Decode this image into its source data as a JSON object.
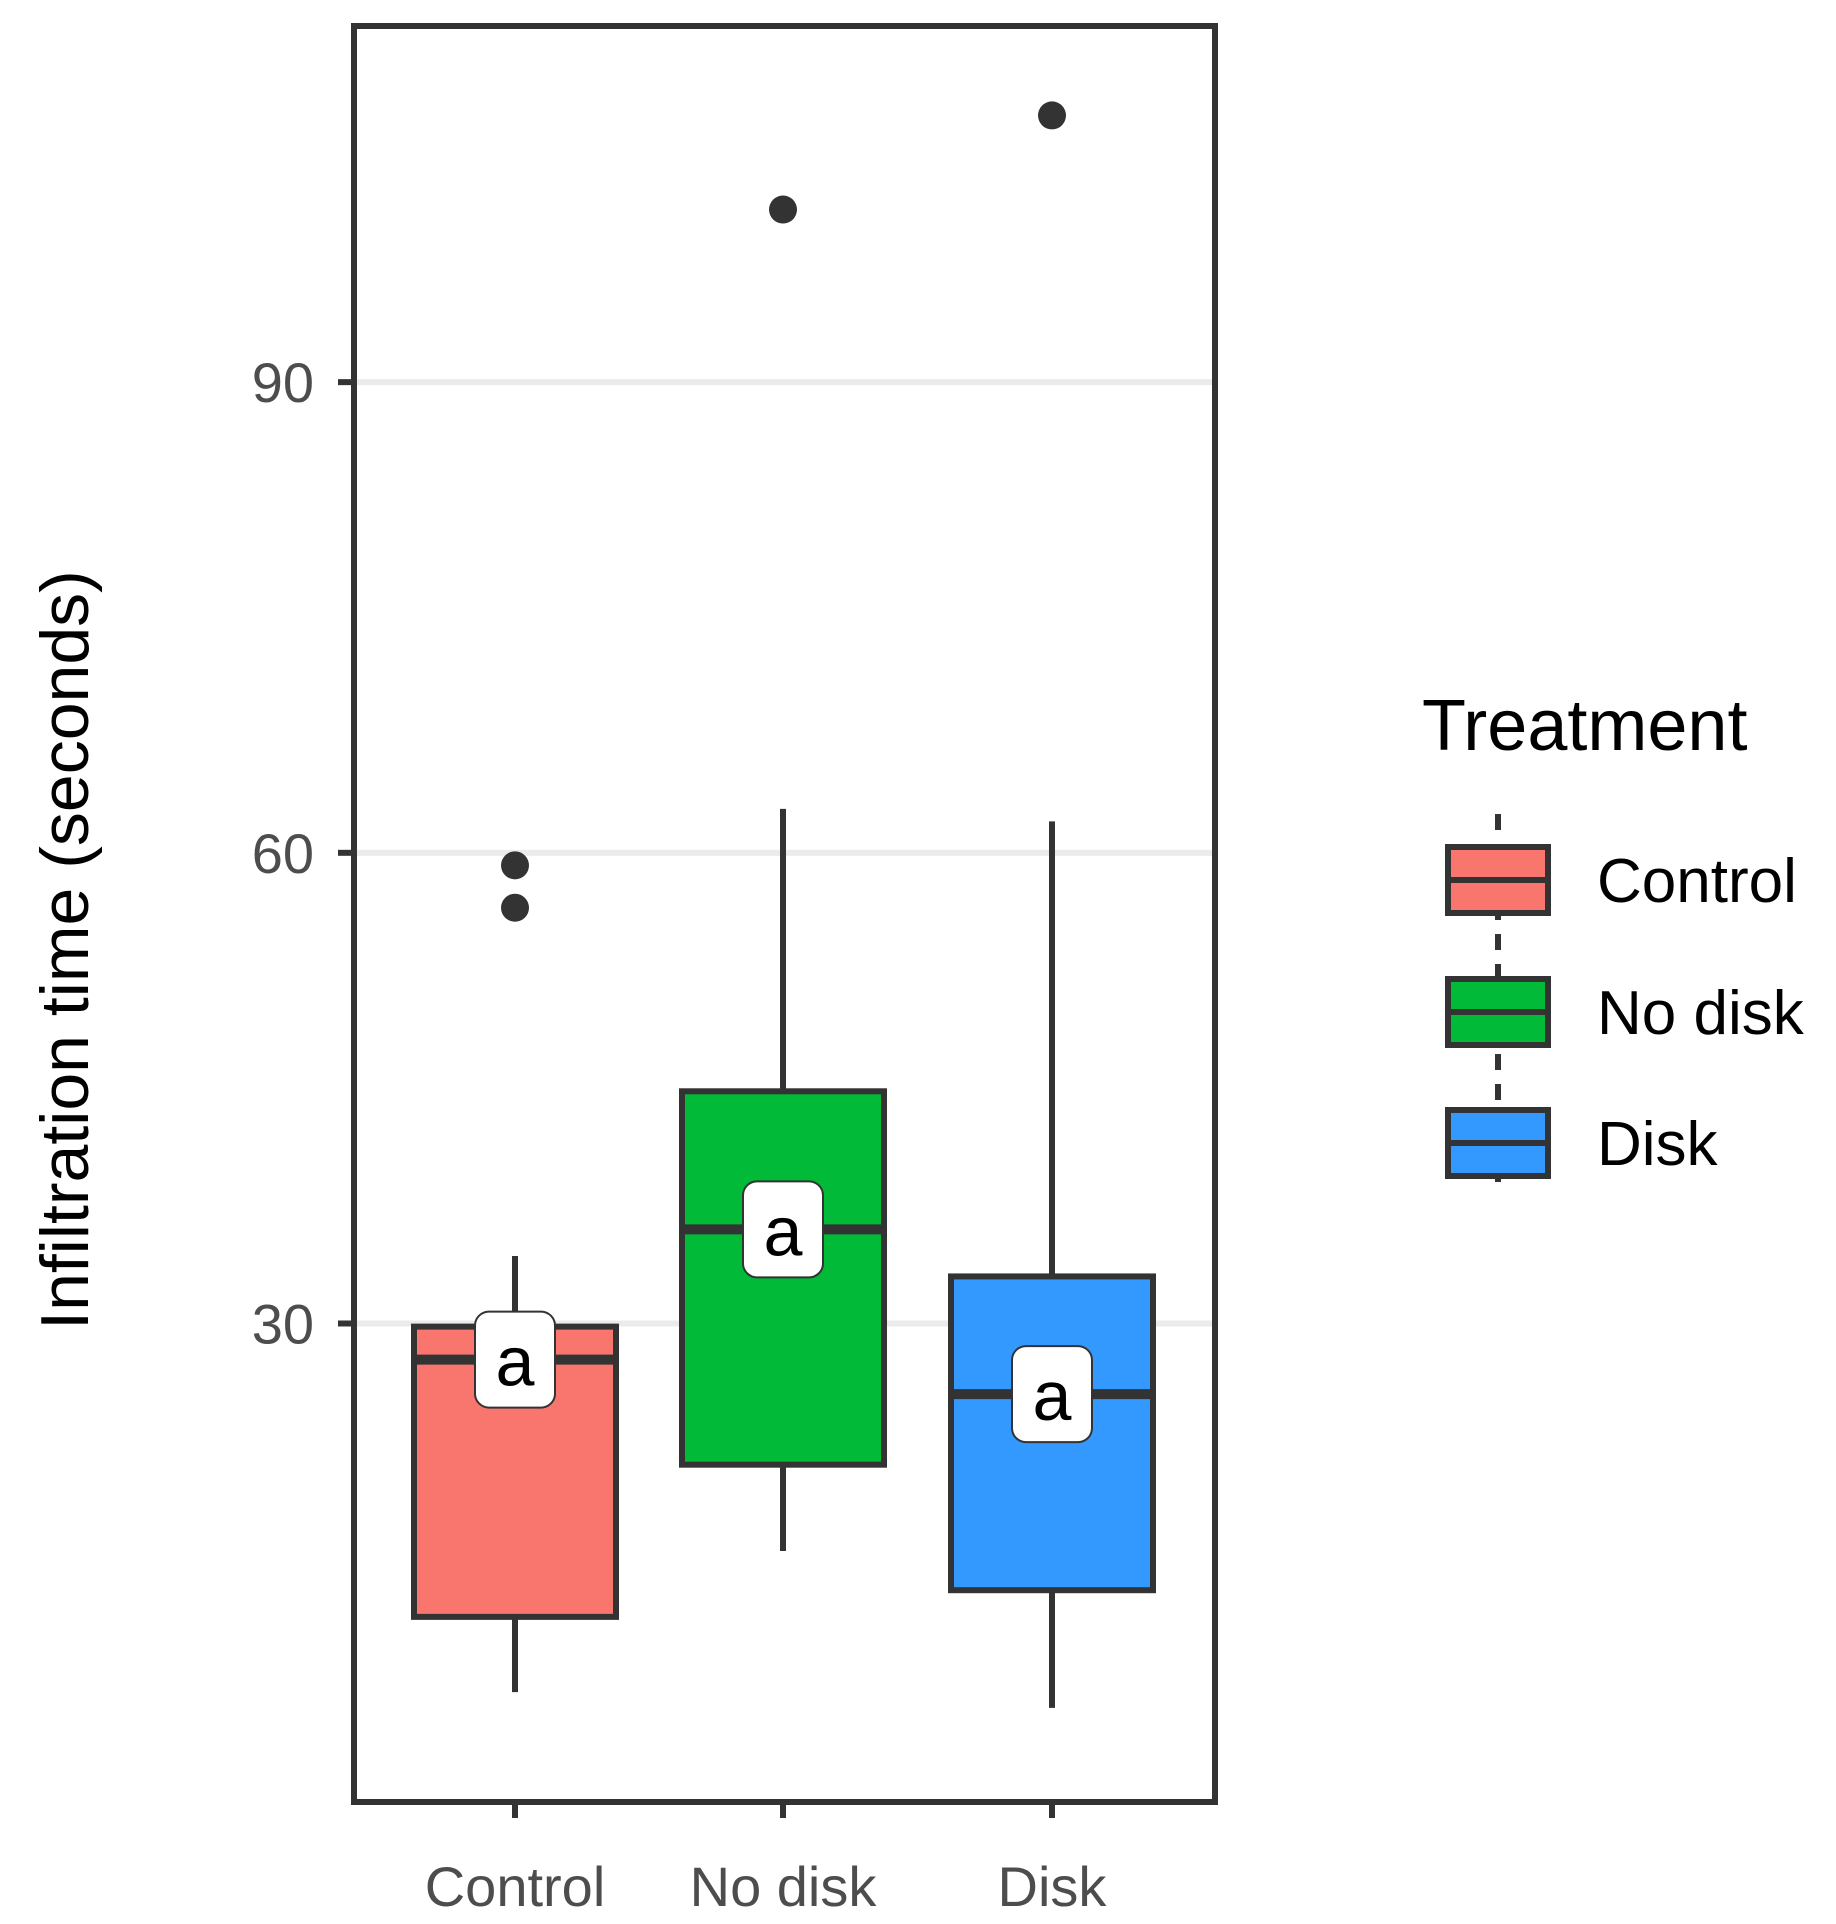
{
  "chart_data": {
    "type": "boxplot",
    "title": "",
    "xlabel": "",
    "ylabel": "Infiltration time (seconds)",
    "ylim": [
      -0.5,
      112.7
    ],
    "yticks": [
      30,
      60,
      90
    ],
    "categories": [
      "Control",
      "No disk",
      "Disk"
    ],
    "boxes": [
      {
        "name": "Control",
        "whisker_low": 6.5,
        "q1": 11.3,
        "median": 27.7,
        "q3": 29.8,
        "whisker_high": 34.3,
        "outliers": [
          56.5,
          59.2
        ],
        "label": "a",
        "color": "#F8766D"
      },
      {
        "name": "No disk",
        "whisker_low": 15.5,
        "q1": 21.0,
        "median": 36.0,
        "q3": 44.8,
        "whisker_high": 62.8,
        "outliers": [
          101.0
        ],
        "label": "a",
        "color": "#00BA38"
      },
      {
        "name": "Disk",
        "whisker_low": 5.5,
        "q1": 13.0,
        "median": 25.5,
        "q3": 33.0,
        "whisker_high": 62.0,
        "outliers": [
          107.0
        ],
        "label": "a",
        "color": "#3399FF"
      }
    ],
    "legend": {
      "title": "Treatment",
      "position": "right",
      "entries": [
        {
          "label": "Control",
          "color": "#F8766D"
        },
        {
          "label": "No disk",
          "color": "#00BA38"
        },
        {
          "label": "Disk",
          "color": "#3399FF"
        }
      ]
    },
    "grid": {
      "major_y": true,
      "x": false
    }
  }
}
